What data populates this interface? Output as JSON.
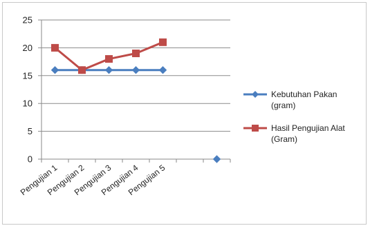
{
  "chart_data": {
    "type": "line",
    "title": "",
    "xlabel": "",
    "ylabel": "",
    "categories": [
      "Pengujian 1",
      "Pengujian 2",
      "Pengujian 3",
      "Pengujian 4",
      "Pengujian 5",
      "",
      ""
    ],
    "ylim": [
      0,
      25
    ],
    "yticks": [
      0,
      5,
      10,
      15,
      20,
      25
    ],
    "grid": true,
    "legend_position": "right",
    "series": [
      {
        "name": "Kebutuhan Pakan (gram)",
        "legend_lines": [
          "Kebutuhan  Pakan",
          "(gram)"
        ],
        "color": "#4a7ebf",
        "marker": "diamond",
        "values": [
          16,
          16,
          16,
          16,
          16,
          null,
          0
        ]
      },
      {
        "name": "Hasil Pengujian Alat (Gram)",
        "legend_lines": [
          "Hasil Pengujian  Alat",
          "(Gram)"
        ],
        "color": "#be4b48",
        "marker": "square",
        "values": [
          20,
          16,
          18,
          19,
          21,
          null,
          null
        ]
      }
    ]
  }
}
